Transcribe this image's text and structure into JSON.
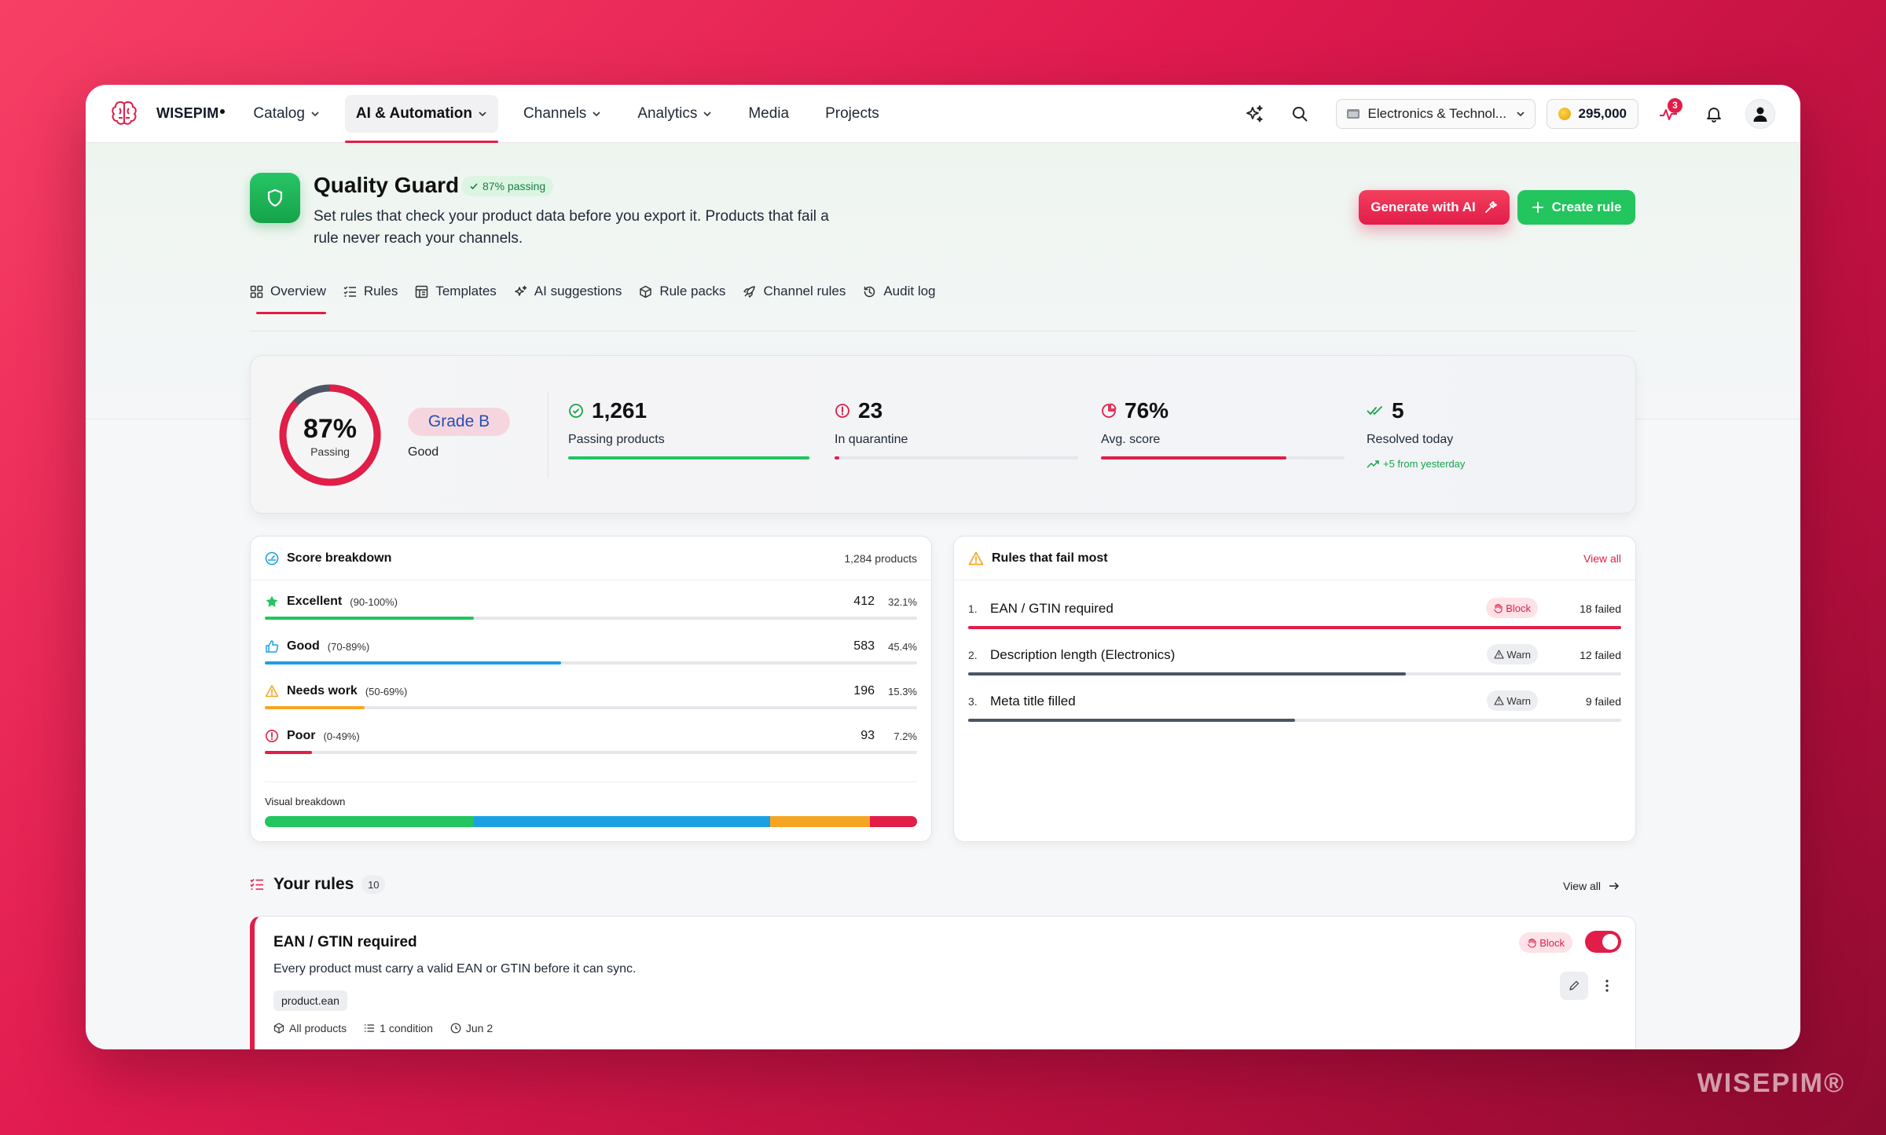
{
  "brand": {
    "name": "WISEPIM",
    "watermark": "WISEPIM®"
  },
  "nav": {
    "items": [
      {
        "label": "Catalog",
        "dropdown": true
      },
      {
        "label": "AI & Automation",
        "dropdown": true,
        "active": true
      },
      {
        "label": "Channels",
        "dropdown": true
      },
      {
        "label": "Analytics",
        "dropdown": true
      },
      {
        "label": "Media",
        "dropdown": false
      },
      {
        "label": "Projects",
        "dropdown": false
      }
    ],
    "workspace": "Electronics & Technol...",
    "credits": "295,000",
    "activity_count": "3"
  },
  "page": {
    "title": "Quality Guard",
    "status_pill": "87% passing",
    "description": "Set rules that check your product data before you export it. Products that fail a rule never reach your channels.",
    "generate_label": "Generate with AI",
    "create_label": "Create rule",
    "tabs": [
      "Overview",
      "Rules",
      "Templates",
      "AI suggestions",
      "Rule packs",
      "Channel rules",
      "Audit log"
    ]
  },
  "summary": {
    "passing_pct": "87%",
    "passing_value": 87,
    "passing_label": "Passing",
    "grade": "Grade B",
    "grade_desc": "Good",
    "stats": [
      {
        "value": "1,261",
        "label": "Passing products",
        "progress": 99,
        "color": "#22c55e",
        "icon": "check-circle-icon"
      },
      {
        "value": "23",
        "label": "In quarantine",
        "progress": 2,
        "color": "#e11d48",
        "icon": "alert-circle-icon"
      },
      {
        "value": "76%",
        "label": "Avg. score",
        "progress": 76,
        "color": "#e11d48",
        "icon": "pie-chart-icon"
      },
      {
        "value": "5",
        "label": "Resolved today",
        "extra": "+5 from yesterday",
        "icon": "double-check-icon"
      }
    ]
  },
  "score_breakdown": {
    "title": "Score breakdown",
    "meta": "1,284 products",
    "rows": [
      {
        "name": "Excellent",
        "range": "(90-100%)",
        "count": "412",
        "pct": "32.1%",
        "value": 32.1,
        "color": "#22c55e",
        "icon": "star-icon"
      },
      {
        "name": "Good",
        "range": "(70-89%)",
        "count": "583",
        "pct": "45.4%",
        "value": 45.4,
        "color": "#1ba1e2",
        "icon": "thumbs-up-icon"
      },
      {
        "name": "Needs work",
        "range": "(50-69%)",
        "count": "196",
        "pct": "15.3%",
        "value": 15.3,
        "color": "#f5a524",
        "icon": "warning-icon"
      },
      {
        "name": "Poor",
        "range": "(0-49%)",
        "count": "93",
        "pct": "7.2%",
        "value": 7.2,
        "color": "#e11d48",
        "icon": "alert-circle-icon"
      }
    ],
    "visual_label": "Visual breakdown"
  },
  "fail_most": {
    "title": "Rules that fail most",
    "view_all": "View all",
    "rows": [
      {
        "num": "1.",
        "name": "EAN / GTIN required",
        "severity": "Block",
        "failed": "18 failed",
        "value": 100,
        "color": "#e11d48"
      },
      {
        "num": "2.",
        "name": "Description length (Electronics)",
        "severity": "Warn",
        "failed": "12 failed",
        "value": 67,
        "color": "#4b5563"
      },
      {
        "num": "3.",
        "name": "Meta title filled",
        "severity": "Warn",
        "failed": "9 failed",
        "value": 50,
        "color": "#4b5563"
      }
    ]
  },
  "your_rules": {
    "title": "Your rules",
    "count": "10",
    "view_all": "View all",
    "rule": {
      "title": "EAN / GTIN required",
      "description": "Every product must carry a valid EAN or GTIN before it can sync.",
      "field": "product.ean",
      "scope": "All products",
      "conditions": "1 condition",
      "date": "Jun 2",
      "severity": "Block",
      "enabled": true
    }
  }
}
